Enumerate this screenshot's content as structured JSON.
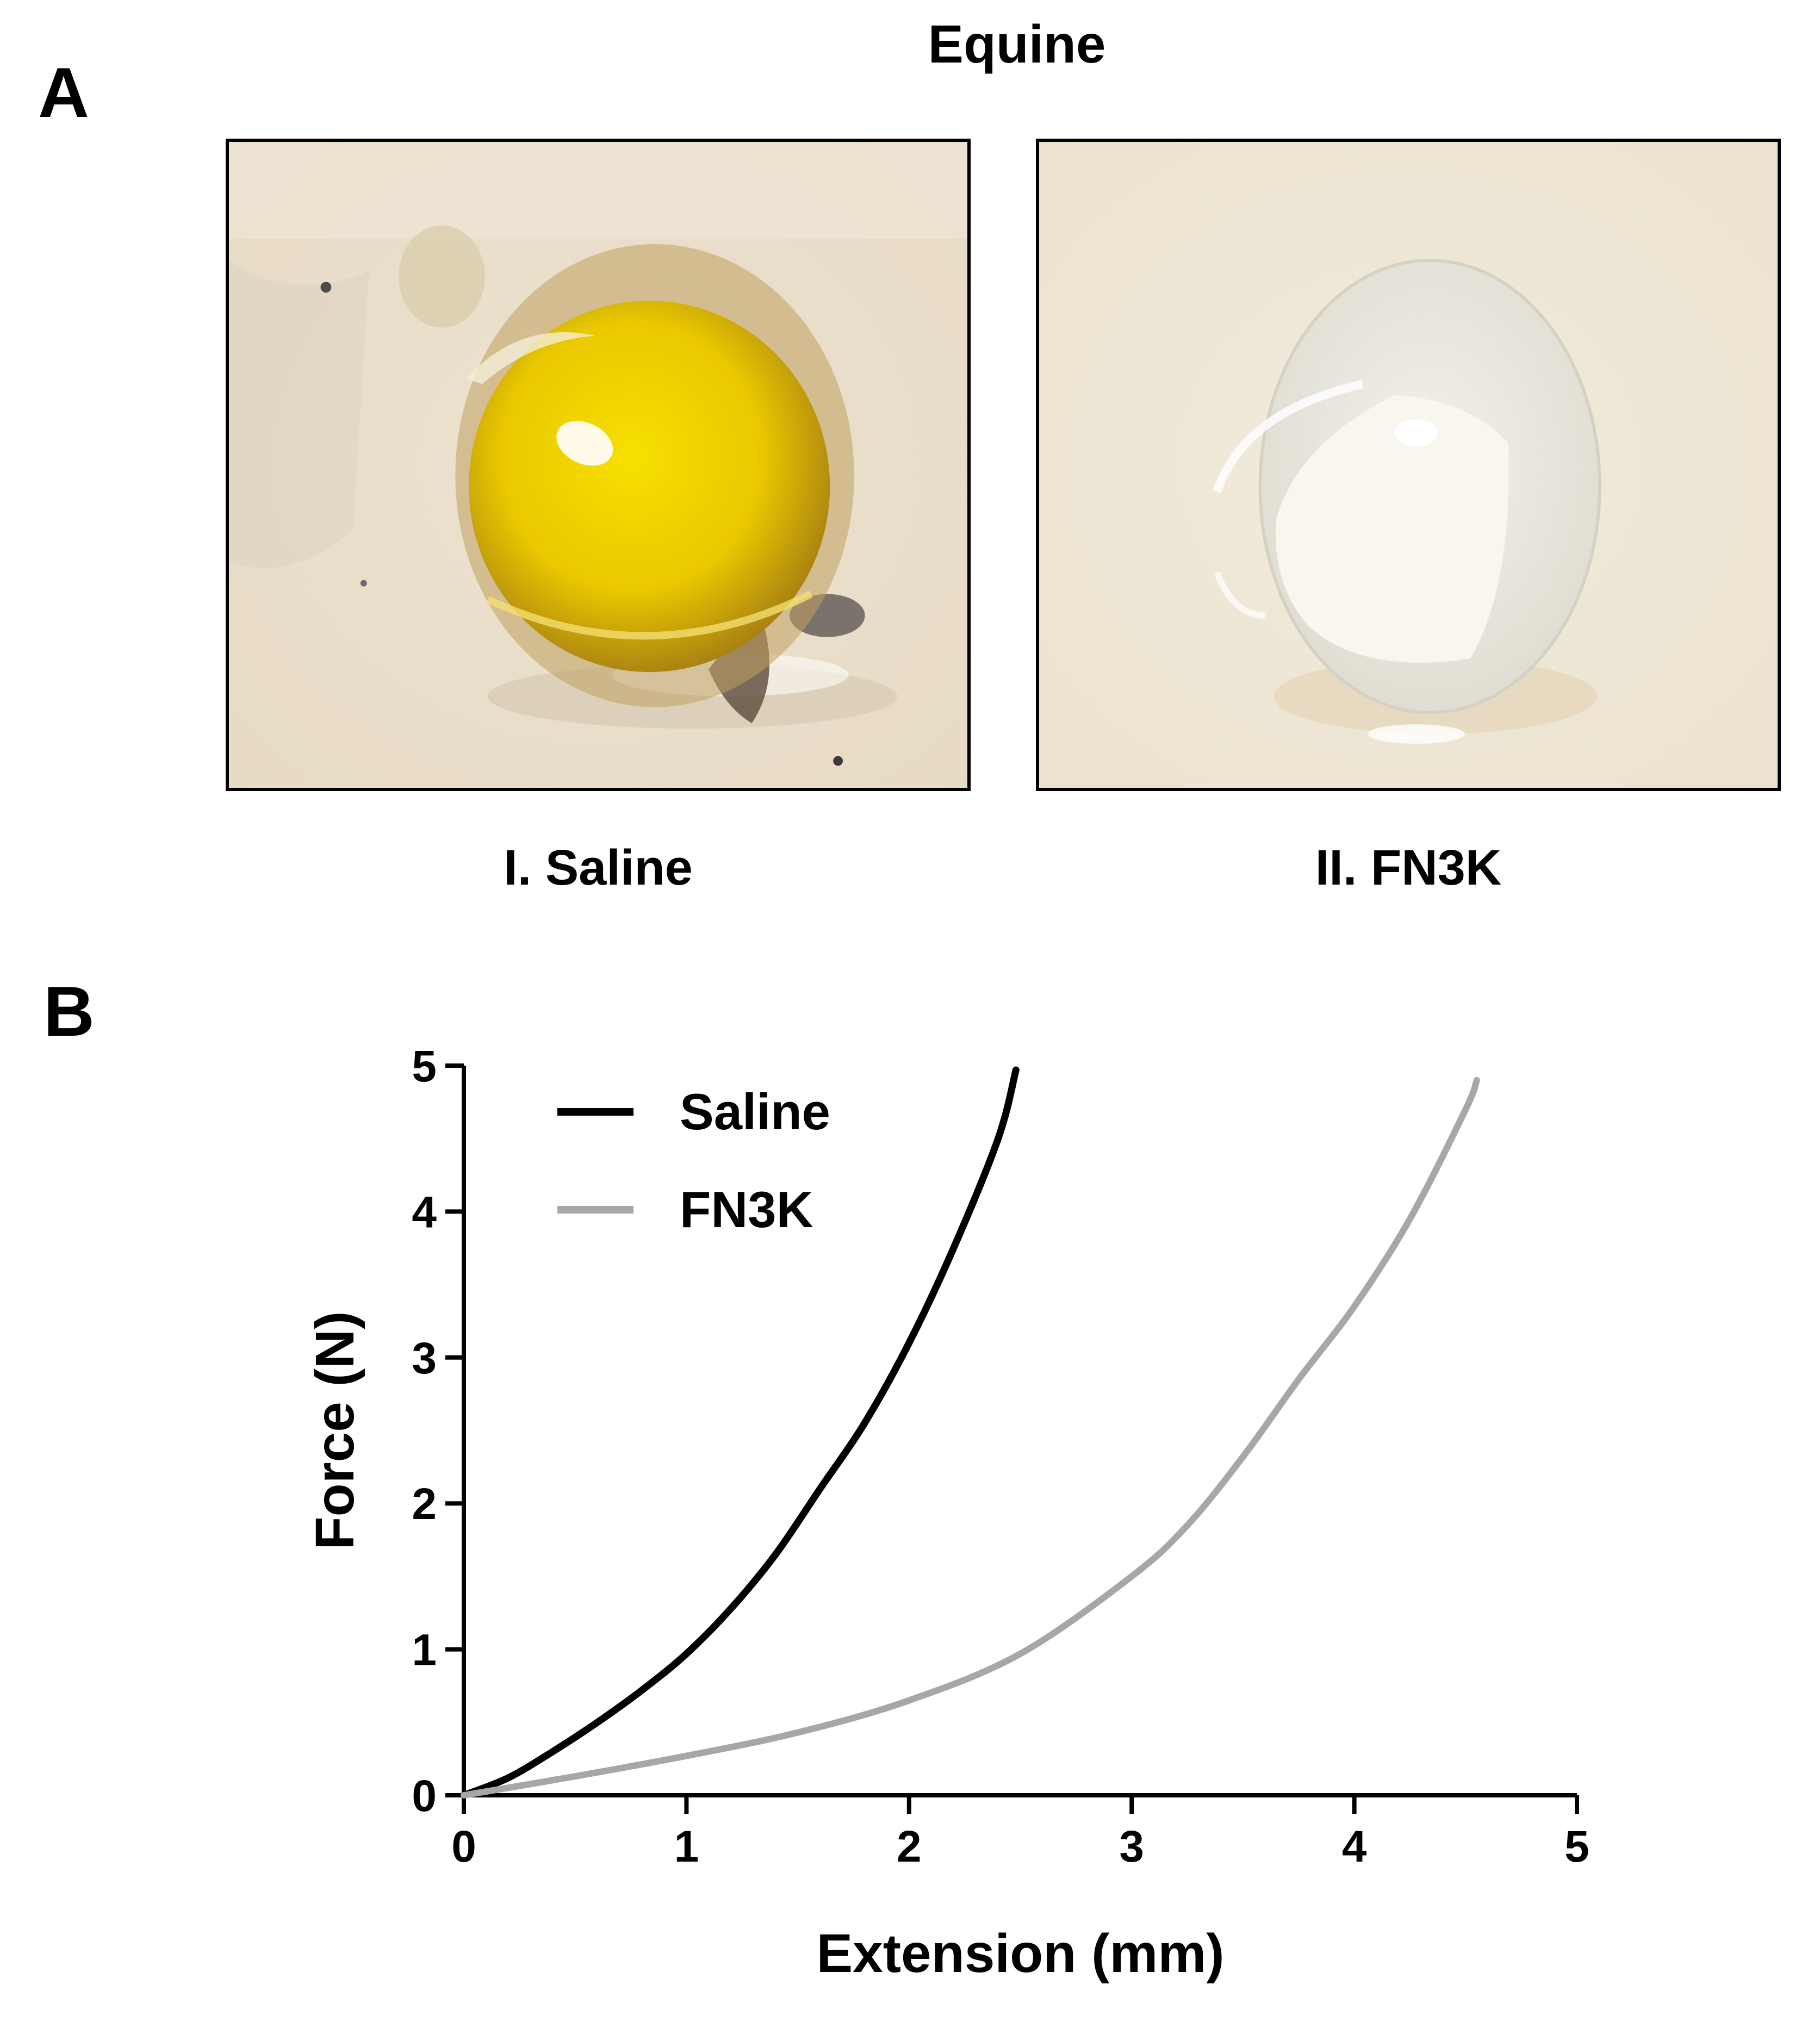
{
  "figure": {
    "panel_a_letter": "A",
    "panel_b_letter": "B",
    "title": "Equine",
    "photos": [
      {
        "label": "I. Saline",
        "description_icon": "yellow-lens-photo"
      },
      {
        "label": "II. FN3K",
        "description_icon": "clear-lens-photo"
      }
    ]
  },
  "colors": {
    "saline": "#000000",
    "fn3k": "#a7a7ab",
    "axis": "#000000"
  },
  "chart_data": {
    "type": "line",
    "title": "",
    "xlabel": "Extension (mm)",
    "ylabel": "Force (N)",
    "xlim": [
      0,
      5
    ],
    "ylim": [
      0,
      5
    ],
    "xticks": [
      "0",
      "1",
      "2",
      "3",
      "4",
      "5"
    ],
    "yticks": [
      "0",
      "1",
      "2",
      "3",
      "4",
      "5"
    ],
    "grid": false,
    "legend_position": "top-left",
    "series": [
      {
        "name": "Saline",
        "x": [
          0,
          0.2,
          0.4,
          0.6,
          0.8,
          1.0,
          1.2,
          1.4,
          1.6,
          1.8,
          2.0,
          2.2,
          2.4,
          2.48
        ],
        "y": [
          0,
          0.12,
          0.3,
          0.5,
          0.72,
          0.97,
          1.28,
          1.65,
          2.1,
          2.55,
          3.1,
          3.75,
          4.5,
          4.97
        ]
      },
      {
        "name": "FN3K",
        "x": [
          0,
          0.5,
          1.0,
          1.5,
          2.0,
          2.5,
          3.0,
          3.25,
          3.5,
          3.75,
          4.0,
          4.25,
          4.5,
          4.55
        ],
        "y": [
          0,
          0.13,
          0.27,
          0.43,
          0.65,
          0.97,
          1.5,
          1.85,
          2.32,
          2.85,
          3.35,
          3.95,
          4.7,
          4.9
        ]
      }
    ]
  }
}
